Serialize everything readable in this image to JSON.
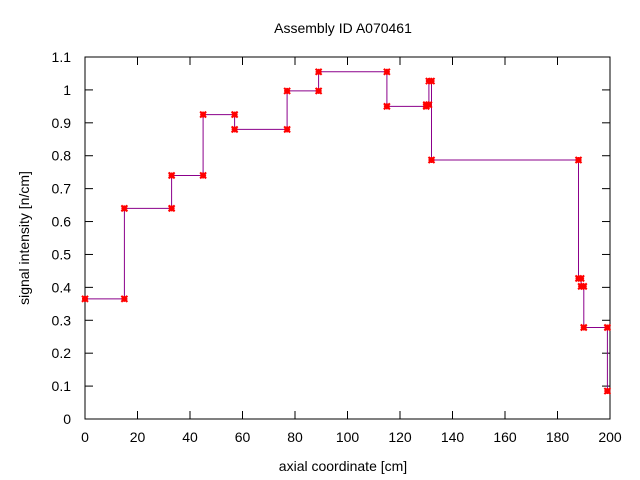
{
  "chart_data": {
    "type": "line",
    "title": "Assembly ID A070461",
    "xlabel": "axial coordinate [cm]",
    "ylabel": "signal intensity [n/cm]",
    "xlim": [
      0,
      200
    ],
    "ylim": [
      0,
      1.1
    ],
    "xticks": [
      0,
      20,
      40,
      60,
      80,
      100,
      120,
      140,
      160,
      180,
      200
    ],
    "yticks": [
      0,
      0.1,
      0.2,
      0.3,
      0.4,
      0.5,
      0.6,
      0.7,
      0.8,
      0.9,
      1,
      1.1
    ],
    "grid": false,
    "line_color": "#8b008b",
    "marker_color": "#ff0000",
    "series": [
      {
        "points": [
          [
            0,
            0.365
          ],
          [
            15,
            0.365
          ],
          [
            15,
            0.64
          ],
          [
            33,
            0.64
          ],
          [
            33,
            0.74
          ],
          [
            45,
            0.74
          ],
          [
            45,
            0.925
          ],
          [
            57,
            0.925
          ],
          [
            57,
            0.88
          ],
          [
            77,
            0.88
          ],
          [
            77,
            0.997
          ],
          [
            89,
            0.997
          ],
          [
            89,
            1.055
          ],
          [
            115,
            1.055
          ],
          [
            115,
            0.95
          ],
          [
            130,
            0.95
          ],
          [
            130,
            0.955
          ],
          [
            131,
            0.955
          ],
          [
            131,
            1.027
          ],
          [
            132,
            1.027
          ],
          [
            132,
            0.787
          ],
          [
            188,
            0.787
          ],
          [
            188,
            0.427
          ],
          [
            189,
            0.427
          ],
          [
            189,
            0.403
          ],
          [
            190,
            0.403
          ],
          [
            190,
            0.278
          ],
          [
            199,
            0.278
          ],
          [
            199,
            0.085
          ]
        ]
      }
    ]
  }
}
